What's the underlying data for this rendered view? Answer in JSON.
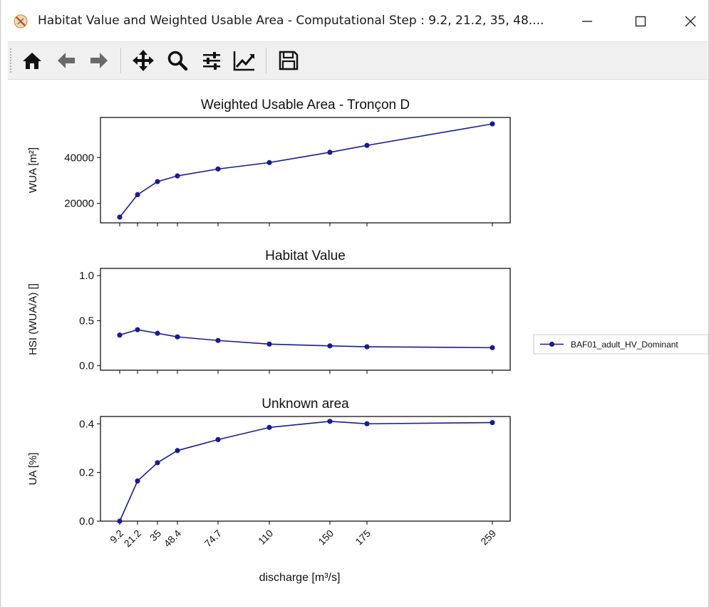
{
  "window": {
    "title": "Habitat Value and Weighted Usable Area - Computational Step : 9.2, 21.2, 35, 48....",
    "minimize_label": "—",
    "maximize_label": "☐",
    "close_label": "✕"
  },
  "toolbar": {
    "items": [
      {
        "name": "home-button",
        "icon": "home-icon"
      },
      {
        "name": "back-button",
        "icon": "arrow-left-icon"
      },
      {
        "name": "forward-button",
        "icon": "arrow-right-icon"
      },
      {
        "name": "pan-button",
        "icon": "move-icon"
      },
      {
        "name": "zoom-button",
        "icon": "magnifier-icon"
      },
      {
        "name": "configure-subplots-button",
        "icon": "sliders-icon"
      },
      {
        "name": "edit-axes-button",
        "icon": "line-chart-icon"
      },
      {
        "name": "save-button",
        "icon": "floppy-icon"
      }
    ]
  },
  "chart_data": {
    "type": "line",
    "line_color": "#1a1a96",
    "x": [
      9.2,
      21.2,
      35,
      48.4,
      74.7,
      110,
      150,
      175,
      259
    ],
    "x_tick_labels": [
      "9.2",
      "21.2",
      "35",
      "48.4",
      "74.7",
      "110",
      "150",
      "175",
      "259"
    ],
    "xlabel": "discharge [m³/s]",
    "legend": {
      "placement": "right",
      "entries": [
        "BAF01_adult_HV_Dominant"
      ]
    },
    "subplots": [
      {
        "title": "Weighted Usable Area - Tronçon D",
        "ylabel": "WUA [m²]",
        "ylim": [
          11500,
          57500
        ],
        "yticks": [
          20000,
          40000
        ],
        "ytick_labels": [
          "20000",
          "40000"
        ],
        "series": [
          {
            "name": "BAF01_adult_HV_Dominant",
            "values": [
              14000,
              23800,
              29500,
              32000,
              35000,
              37800,
              42300,
              45300,
              54700
            ]
          }
        ]
      },
      {
        "title": "Habitat Value",
        "ylabel": "HSI (WUA/A) []",
        "ylim": [
          -0.05,
          1.08
        ],
        "yticks": [
          0.0,
          0.5,
          1.0
        ],
        "ytick_labels": [
          "0.0",
          "0.5",
          "1.0"
        ],
        "series": [
          {
            "name": "BAF01_adult_HV_Dominant",
            "values": [
              0.34,
              0.4,
              0.36,
              0.32,
              0.28,
              0.24,
              0.22,
              0.21,
              0.2
            ]
          }
        ]
      },
      {
        "title": "Unknown area",
        "ylabel": "UA [%]",
        "ylim": [
          0.0,
          0.43
        ],
        "yticks": [
          0.0,
          0.2,
          0.4
        ],
        "ytick_labels": [
          "0.0",
          "0.2",
          "0.4"
        ],
        "series": [
          {
            "name": "BAF01_adult_HV_Dominant",
            "values": [
              0.0,
              0.165,
              0.24,
              0.29,
              0.335,
              0.385,
              0.41,
              0.4,
              0.405
            ]
          }
        ]
      }
    ]
  }
}
